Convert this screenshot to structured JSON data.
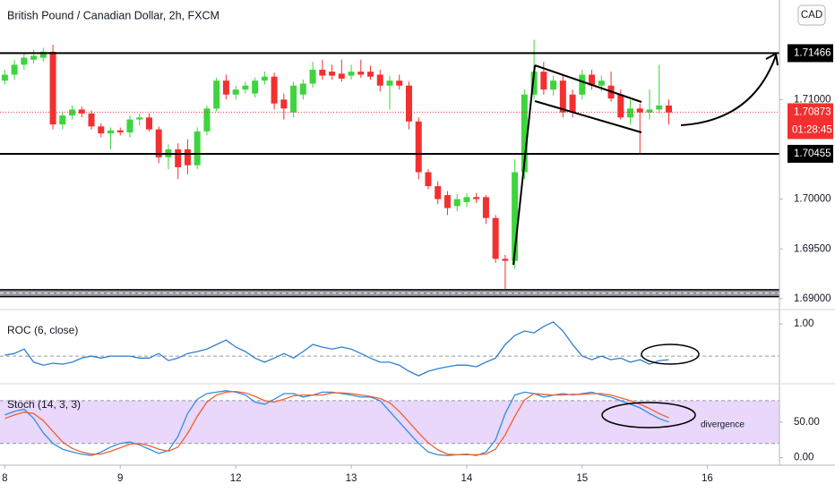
{
  "chart_data": [
    {
      "type": "candlestick",
      "title": "British Pound / Canadian Dollar, 2h, FXCM",
      "currency": "CAD",
      "xlim": [
        -0.5,
        80.5
      ],
      "xticks": [
        {
          "value": 0,
          "label": "8"
        },
        {
          "value": 12,
          "label": "9"
        },
        {
          "value": 24,
          "label": "12"
        },
        {
          "value": 36,
          "label": "13"
        },
        {
          "value": 48,
          "label": "14"
        },
        {
          "value": 60,
          "label": "15"
        },
        {
          "value": 73,
          "label": "16"
        }
      ],
      "ylim": [
        1.689,
        1.72
      ],
      "yticks": [
        {
          "value": 1.69,
          "label": "1.69000"
        },
        {
          "value": 1.695,
          "label": "1.69500"
        },
        {
          "value": 1.7,
          "label": "1.70000"
        },
        {
          "value": 1.71,
          "label": "1.71000"
        }
      ],
      "up_color": "#3ed43e",
      "down_color": "#f23030",
      "open": [
        1.7119,
        1.7125,
        1.7135,
        1.714,
        1.7142,
        1.7148,
        1.7075,
        1.7084,
        1.709,
        1.7086,
        1.7073,
        1.7066,
        1.7069,
        1.7067,
        1.708,
        1.7082,
        1.707,
        1.7042,
        1.705,
        1.705,
        1.7034,
        1.7068,
        1.7091,
        1.7119,
        1.7105,
        1.711,
        1.7106,
        1.7119,
        1.7123,
        1.71,
        1.7087,
        1.7105,
        1.7116,
        1.713,
        1.7128,
        1.7126,
        1.7124,
        1.7128,
        1.7128,
        1.7125,
        1.7114,
        1.7119,
        1.7114,
        1.7078,
        1.7027,
        1.7013,
        1.7004,
        1.6993,
        1.6997,
        1.7002,
        1.7002,
        1.6981,
        1.694,
        1.6938,
        1.7027,
        1.7105,
        1.7128,
        1.711,
        1.7119,
        1.7105,
        1.7105,
        1.7125,
        1.7114,
        1.7114,
        1.7105,
        1.7082,
        1.7091,
        1.7087,
        1.709,
        1.7094
      ],
      "high": [
        1.713,
        1.714,
        1.7146,
        1.715,
        1.7152,
        1.7155,
        1.7088,
        1.7094,
        1.7093,
        1.7089,
        1.7076,
        1.7072,
        1.7072,
        1.7084,
        1.7086,
        1.7086,
        1.7073,
        1.7055,
        1.7056,
        1.706,
        1.7072,
        1.7094,
        1.7122,
        1.7125,
        1.7114,
        1.7118,
        1.7122,
        1.7128,
        1.7127,
        1.7106,
        1.7118,
        1.712,
        1.7138,
        1.714,
        1.7135,
        1.714,
        1.7135,
        1.714,
        1.7134,
        1.713,
        1.7124,
        1.7125,
        1.7118,
        1.7082,
        1.703,
        1.7018,
        1.7008,
        1.7005,
        1.7006,
        1.7006,
        1.7004,
        1.6984,
        1.6944,
        1.704,
        1.711,
        1.716,
        1.7138,
        1.7124,
        1.7125,
        1.711,
        1.713,
        1.713,
        1.7124,
        1.7128,
        1.711,
        1.71,
        1.7096,
        1.711,
        1.7135,
        1.71
      ],
      "low": [
        1.7115,
        1.712,
        1.713,
        1.7136,
        1.7138,
        1.707,
        1.707,
        1.708,
        1.7082,
        1.707,
        1.7062,
        1.705,
        1.7064,
        1.7062,
        1.7074,
        1.7068,
        1.7036,
        1.703,
        1.702,
        1.7025,
        1.703,
        1.7064,
        1.7088,
        1.71,
        1.71,
        1.7106,
        1.7102,
        1.7115,
        1.709,
        1.708,
        1.7082,
        1.71,
        1.7112,
        1.712,
        1.712,
        1.7118,
        1.712,
        1.7122,
        1.712,
        1.7108,
        1.709,
        1.711,
        1.707,
        1.702,
        1.701,
        1.6995,
        1.6984,
        1.6988,
        1.6992,
        1.6996,
        1.6975,
        1.6936,
        1.691,
        1.693,
        1.702,
        1.71,
        1.7105,
        1.7104,
        1.7082,
        1.7082,
        1.71,
        1.711,
        1.7108,
        1.7098,
        1.708,
        1.7075,
        1.7046,
        1.708,
        1.7086,
        1.7075
      ],
      "close": [
        1.7125,
        1.7135,
        1.7142,
        1.7144,
        1.7148,
        1.7075,
        1.7084,
        1.709,
        1.7086,
        1.7073,
        1.7066,
        1.7069,
        1.7067,
        1.708,
        1.7082,
        1.707,
        1.7042,
        1.705,
        1.7032,
        1.7034,
        1.7068,
        1.7091,
        1.7119,
        1.7105,
        1.711,
        1.7114,
        1.7119,
        1.7123,
        1.7096,
        1.7091,
        1.7114,
        1.7116,
        1.713,
        1.7124,
        1.7124,
        1.7121,
        1.7128,
        1.7125,
        1.7123,
        1.7114,
        1.7119,
        1.7114,
        1.7078,
        1.7027,
        1.7013,
        1.7,
        1.6991,
        1.7,
        1.7002,
        1.7,
        1.6981,
        1.694,
        1.6938,
        1.7027,
        1.7105,
        1.7128,
        1.711,
        1.7119,
        1.7087,
        1.7087,
        1.7125,
        1.7114,
        1.7119,
        1.7101,
        1.7082,
        1.7091,
        1.7087,
        1.709,
        1.7094,
        1.7087
      ],
      "levels": [
        {
          "value": 1.71466,
          "label": "1.71466"
        },
        {
          "value": 1.70455,
          "label": "1.70455"
        }
      ],
      "last_price": {
        "value": 1.70873,
        "label": "1.70873"
      },
      "countdown": "01:28:45",
      "support_zone": [
        1.6902,
        1.6909
      ]
    },
    {
      "type": "line",
      "title": "ROC (6, close)",
      "ylim": [
        -0.83,
        1.39
      ],
      "yticks": [
        {
          "value": 1,
          "label": "1.00"
        }
      ],
      "zero_line": 0,
      "series": [
        {
          "color": "#2f7fd0",
          "values": [
            0.03,
            0.08,
            0.22,
            -0.19,
            -0.28,
            -0.22,
            -0.25,
            -0.19,
            -0.06,
            0.0,
            -0.06,
            0.0,
            0.0,
            0.0,
            -0.06,
            -0.06,
            0.08,
            -0.14,
            -0.06,
            0.08,
            0.14,
            0.22,
            0.36,
            0.5,
            0.28,
            0.14,
            -0.06,
            -0.19,
            -0.06,
            0.08,
            -0.06,
            0.14,
            0.36,
            0.28,
            0.22,
            0.28,
            0.22,
            0.08,
            -0.06,
            -0.19,
            -0.19,
            -0.28,
            -0.47,
            -0.61,
            -0.47,
            -0.39,
            -0.33,
            -0.28,
            -0.28,
            -0.33,
            -0.19,
            -0.06,
            0.36,
            0.64,
            0.78,
            0.72,
            0.92,
            1.06,
            0.78,
            0.36,
            0.0,
            -0.11,
            0.0,
            -0.11,
            -0.06,
            -0.19,
            -0.11,
            -0.25,
            -0.14,
            -0.11
          ]
        }
      ]
    },
    {
      "type": "line",
      "title": "Stoch (14, 3, 3)",
      "annotation": "divergence",
      "ylim": [
        -8,
        100
      ],
      "yticks": [
        {
          "value": 50,
          "label": "50.00"
        },
        {
          "value": 0,
          "label": "0.00"
        }
      ],
      "band": [
        20,
        80
      ],
      "series": [
        {
          "color": "#2f8fe0",
          "values": [
            60,
            65,
            68,
            55,
            35,
            20,
            12,
            8,
            5,
            3,
            8,
            15,
            20,
            22,
            18,
            12,
            6,
            10,
            30,
            62,
            82,
            90,
            92,
            94,
            92,
            88,
            78,
            75,
            82,
            90,
            90,
            85,
            88,
            92,
            92,
            90,
            88,
            85,
            85,
            80,
            65,
            50,
            35,
            20,
            8,
            4,
            3,
            4,
            5,
            3,
            8,
            25,
            62,
            88,
            92,
            90,
            85,
            88,
            90,
            88,
            90,
            92,
            88,
            85,
            80,
            75,
            70,
            62,
            55,
            50
          ]
        },
        {
          "color": "#f06030",
          "values": [
            55,
            60,
            64,
            62,
            52,
            37,
            22,
            13,
            8,
            5,
            5,
            9,
            14,
            19,
            20,
            17,
            12,
            9,
            15,
            34,
            58,
            78,
            88,
            92,
            93,
            91,
            86,
            80,
            78,
            82,
            87,
            88,
            88,
            88,
            91,
            91,
            90,
            88,
            86,
            83,
            77,
            65,
            50,
            35,
            21,
            11,
            5,
            4,
            4,
            4,
            5,
            12,
            32,
            58,
            81,
            90,
            89,
            88,
            88,
            89,
            89,
            90,
            90,
            88,
            84,
            80,
            75,
            69,
            62,
            56
          ]
        }
      ]
    }
  ]
}
